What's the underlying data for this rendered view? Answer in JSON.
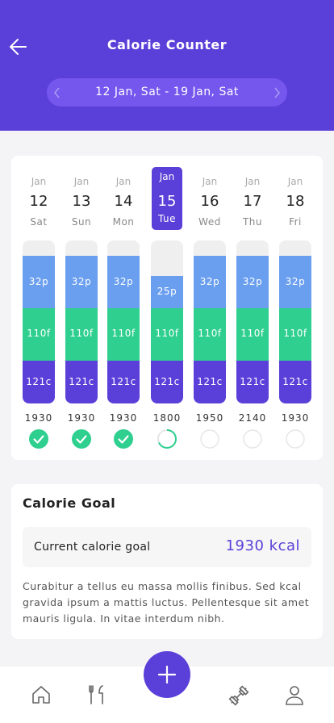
{
  "header": {
    "title": "Calorie Counter",
    "date_range": "12 Jan, Sat - 19 Jan, Sat"
  },
  "days": [
    {
      "month": "Jan",
      "day": "12",
      "weekday": "Sat",
      "protein": "32p",
      "fat": "110f",
      "carbs": "121c",
      "total": 1930
    },
    {
      "month": "Jan",
      "day": "13",
      "weekday": "Sun",
      "protein": "32p",
      "fat": "110f",
      "carbs": "121c",
      "total": 1930
    },
    {
      "month": "Jan",
      "day": "14",
      "weekday": "Mon",
      "protein": "32p",
      "fat": "110f",
      "carbs": "121c",
      "total": 1930
    },
    {
      "month": "Jan",
      "day": "15",
      "weekday": "Tue",
      "protein": "25p",
      "fat": "110f",
      "carbs": "121c",
      "total": 1800
    },
    {
      "month": "Jan",
      "day": "16",
      "weekday": "Wed",
      "protein": "32p",
      "fat": "110f",
      "carbs": "121c",
      "total": 1950
    },
    {
      "month": "Jan",
      "day": "17",
      "weekday": "Thu",
      "protein": "32p",
      "fat": "110f",
      "carbs": "121c",
      "total": 2140
    },
    {
      "month": "Jan",
      "day": "18",
      "weekday": "Fri",
      "protein": "32p",
      "fat": "110f",
      "carbs": "121c",
      "total": 1930
    }
  ],
  "goal": {
    "title": "Calorie Goal",
    "label": "Current calorie goal",
    "value": "1930 kcal",
    "description": "Curabitur a tellus eu massa mollis finibus. Sed kcal gravida ipsum a mattis luctus. Pellentesque sit amet mauris ligula. In vitae interdum nibh."
  }
}
